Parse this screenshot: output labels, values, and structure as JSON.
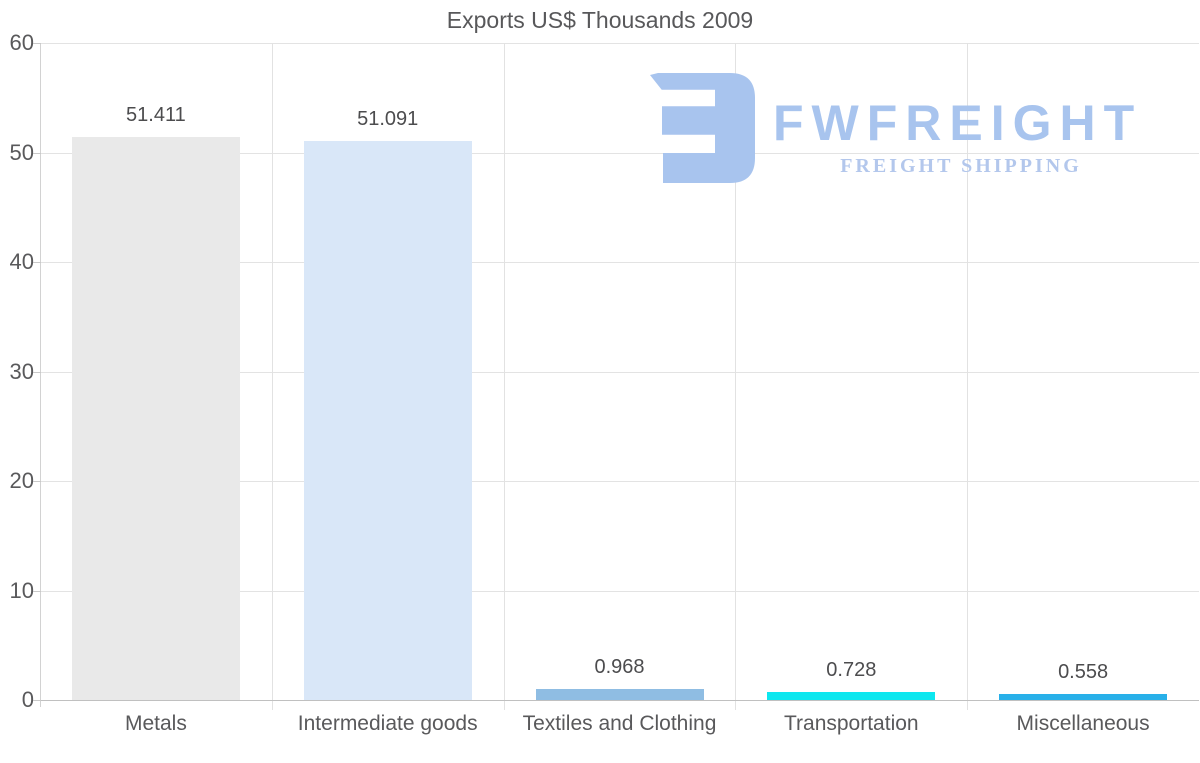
{
  "chart_data": {
    "type": "bar",
    "title": "Exports US$ Thousands 2009",
    "categories": [
      "Metals",
      "Intermediate goods",
      "Textiles and Clothing",
      "Transportation",
      "Miscellaneous"
    ],
    "values": [
      51.411,
      51.091,
      0.968,
      0.728,
      0.558
    ],
    "value_labels": [
      "51.411",
      "51.091",
      "0.968",
      "0.728",
      "0.558"
    ],
    "bar_colors": [
      "#e9e9e9",
      "#d9e7f8",
      "#8fbde3",
      "#0ce7ef",
      "#28b0e9"
    ],
    "xlabel": "",
    "ylabel": "",
    "ylim": [
      0,
      60
    ],
    "yticks": [
      0,
      10,
      20,
      30,
      40,
      50,
      60
    ],
    "grid": "horizontal lines at y ticks, vertical lines at category boundaries",
    "legend": "none"
  },
  "watermark": {
    "brand": "FWFREIGHT",
    "tagline": "FREIGHT SHIPPING",
    "color": "#a8c4ee"
  }
}
